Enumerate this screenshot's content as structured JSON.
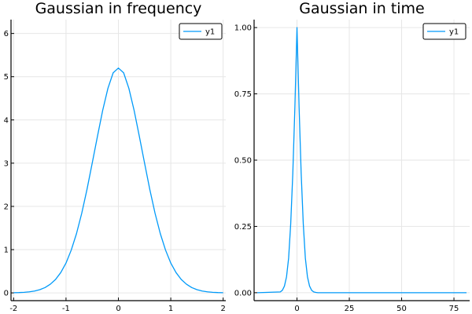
{
  "colors": {
    "series": "#009af9",
    "grid": "#e6e6e6",
    "axis": "#000000",
    "background": "#ffffff"
  },
  "chart_data": [
    {
      "type": "line",
      "title": "Gaussian in frequency",
      "xlabel": "",
      "ylabel": "",
      "xlim": [
        -2.05,
        2.05
      ],
      "ylim": [
        -0.18,
        6.32
      ],
      "xticks": [
        -2,
        -1,
        0,
        1,
        2
      ],
      "xtick_labels": [
        "-2",
        "-1",
        "0",
        "1",
        "2"
      ],
      "yticks": [
        0,
        1,
        2,
        3,
        4,
        5,
        6
      ],
      "ytick_labels": [
        "0",
        "1",
        "2",
        "3",
        "4",
        "5",
        "6"
      ],
      "grid": true,
      "legend": "top-right",
      "series": [
        {
          "name": "y1",
          "x": [
            -2.0,
            -1.9,
            -1.8,
            -1.7,
            -1.6,
            -1.5,
            -1.4,
            -1.3,
            -1.2,
            -1.1,
            -1.0,
            -0.9,
            -0.8,
            -0.7,
            -0.6,
            -0.5,
            -0.4,
            -0.3,
            -0.2,
            -0.1,
            0.0,
            0.1,
            0.2,
            0.3,
            0.4,
            0.5,
            0.6,
            0.7,
            0.8,
            0.9,
            1.0,
            1.1,
            1.2,
            1.3,
            1.4,
            1.5,
            1.6,
            1.7,
            1.8,
            1.9,
            2.0
          ],
          "y": [
            0.004,
            0.007,
            0.013,
            0.024,
            0.043,
            0.074,
            0.123,
            0.2,
            0.31,
            0.47,
            0.69,
            0.99,
            1.37,
            1.84,
            2.39,
            3.0,
            3.62,
            4.22,
            4.73,
            5.09,
            5.2,
            5.09,
            4.73,
            4.22,
            3.62,
            3.0,
            2.39,
            1.84,
            1.37,
            0.99,
            0.69,
            0.47,
            0.31,
            0.2,
            0.123,
            0.074,
            0.043,
            0.024,
            0.013,
            0.007,
            0.004
          ]
        }
      ]
    },
    {
      "type": "line",
      "title": "Gaussian in time",
      "xlabel": "",
      "ylabel": "",
      "xlim": [
        -20.5,
        82.5
      ],
      "ylim": [
        -0.03,
        1.03
      ],
      "xticks": [
        0,
        25,
        50,
        75
      ],
      "xtick_labels": [
        "0",
        "25",
        "50",
        "75"
      ],
      "yticks": [
        0,
        0.25,
        0.5,
        0.75,
        1.0
      ],
      "ytick_labels": [
        "0.00",
        "0.25",
        "0.50",
        "0.75",
        "1.00"
      ],
      "grid": true,
      "legend": "top-right",
      "series": [
        {
          "name": "y1",
          "x": [
            -19,
            -8,
            -7,
            -6,
            -5,
            -4,
            -3,
            -2,
            -1,
            0,
            1,
            2,
            3,
            4,
            5,
            6,
            7,
            8,
            9,
            10,
            81
          ],
          "y": [
            0.0,
            0.003,
            0.009,
            0.025,
            0.06,
            0.13,
            0.26,
            0.45,
            0.7,
            1.0,
            0.7,
            0.45,
            0.26,
            0.13,
            0.06,
            0.025,
            0.009,
            0.003,
            0.001,
            0.0,
            0.0
          ]
        }
      ]
    }
  ]
}
